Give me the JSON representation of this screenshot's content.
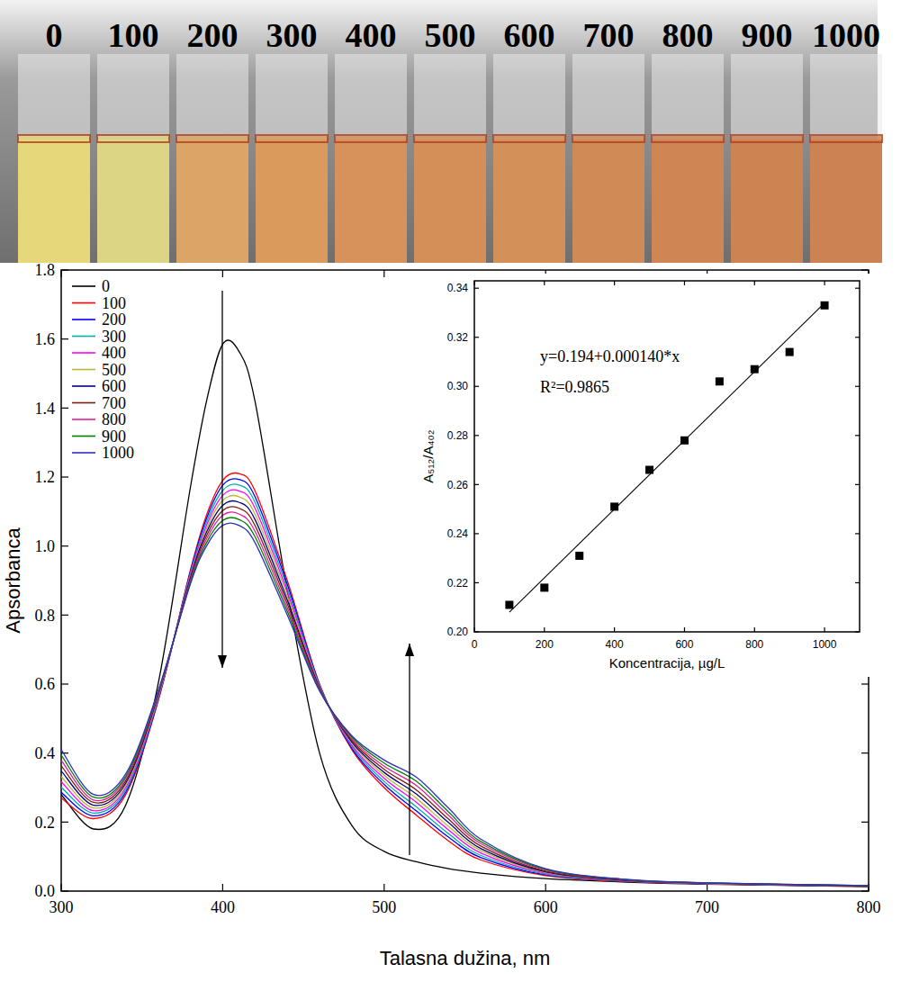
{
  "photo": {
    "labels": [
      "0",
      "100",
      "200",
      "300",
      "400",
      "500",
      "600",
      "700",
      "800",
      "900",
      "1000"
    ],
    "colors": [
      "#e6d77a",
      "#dcd584",
      "#dca566",
      "#d99a5c",
      "#d6925a",
      "#d48e58",
      "#d39058",
      "#d08a55",
      "#cf8654",
      "#cd8453",
      "#cc8252"
    ]
  },
  "chart_data": [
    {
      "type": "line",
      "x_label": "Talasna dužina, nm",
      "y_label": "Apsorbanca",
      "x": [
        300,
        320,
        340,
        360,
        380,
        390,
        400,
        410,
        420,
        440,
        460,
        480,
        500,
        520,
        540,
        560,
        600,
        650,
        700,
        800
      ],
      "xlim": [
        300,
        800
      ],
      "ylim": [
        0,
        1.8
      ],
      "xticks": [
        300,
        400,
        500,
        600,
        700,
        800
      ],
      "yticks": [
        {
          "value": 0,
          "label": "0.0"
        },
        0.2,
        0.4,
        0.6,
        0.8,
        {
          "value": 1,
          "label": "1.0"
        },
        1.2,
        1.4,
        1.6,
        1.8
      ],
      "legend": "top-left",
      "series": [
        {
          "name": "0",
          "color": "#000000",
          "values": [
            0.28,
            0.18,
            0.25,
            0.6,
            1.17,
            1.42,
            1.585,
            1.565,
            1.42,
            0.87,
            0.4,
            0.19,
            0.115,
            0.085,
            0.065,
            0.052,
            0.036,
            0.026,
            0.02,
            0.013
          ]
        },
        {
          "name": "100",
          "color": "#ff0000",
          "values": [
            0.27,
            0.21,
            0.28,
            0.55,
            0.93,
            1.09,
            1.19,
            1.21,
            1.16,
            0.9,
            0.6,
            0.41,
            0.3,
            0.22,
            0.145,
            0.09,
            0.045,
            0.028,
            0.021,
            0.014
          ]
        },
        {
          "name": "200",
          "color": "#0000ff",
          "values": [
            0.286,
            0.218,
            0.287,
            0.553,
            0.926,
            1.08,
            1.176,
            1.193,
            1.143,
            0.889,
            0.598,
            0.414,
            0.309,
            0.232,
            0.156,
            0.097,
            0.047,
            0.029,
            0.021,
            0.014
          ]
        },
        {
          "name": "300",
          "color": "#00b0b0",
          "values": [
            0.301,
            0.226,
            0.293,
            0.557,
            0.921,
            1.07,
            1.161,
            1.177,
            1.127,
            0.878,
            0.596,
            0.419,
            0.318,
            0.244,
            0.166,
            0.103,
            0.049,
            0.029,
            0.022,
            0.014
          ]
        },
        {
          "name": "400",
          "color": "#ff00ff",
          "values": [
            0.317,
            0.233,
            0.3,
            0.56,
            0.917,
            1.06,
            1.147,
            1.16,
            1.11,
            0.867,
            0.593,
            0.423,
            0.327,
            0.257,
            0.177,
            0.11,
            0.052,
            0.03,
            0.022,
            0.015
          ]
        },
        {
          "name": "500",
          "color": "#b8b838",
          "values": [
            0.332,
            0.241,
            0.307,
            0.563,
            0.912,
            1.05,
            1.132,
            1.143,
            1.093,
            0.856,
            0.591,
            0.428,
            0.336,
            0.269,
            0.187,
            0.117,
            0.054,
            0.031,
            0.022,
            0.015
          ]
        },
        {
          "name": "600",
          "color": "#000080",
          "values": [
            0.348,
            0.249,
            0.313,
            0.567,
            0.908,
            1.04,
            1.118,
            1.127,
            1.077,
            0.844,
            0.589,
            0.432,
            0.344,
            0.281,
            0.198,
            0.123,
            0.056,
            0.031,
            0.023,
            0.015
          ]
        },
        {
          "name": "700",
          "color": "#7a1f10",
          "values": [
            0.363,
            0.257,
            0.32,
            0.57,
            0.903,
            1.03,
            1.103,
            1.11,
            1.06,
            0.833,
            0.587,
            0.437,
            0.353,
            0.293,
            0.208,
            0.13,
            0.058,
            0.032,
            0.023,
            0.015
          ]
        },
        {
          "name": "800",
          "color": "#e0209a",
          "values": [
            0.379,
            0.264,
            0.327,
            0.573,
            0.899,
            1.02,
            1.089,
            1.093,
            1.043,
            0.822,
            0.584,
            0.441,
            0.362,
            0.306,
            0.219,
            0.137,
            0.061,
            0.033,
            0.023,
            0.016
          ]
        },
        {
          "name": "900",
          "color": "#008000",
          "values": [
            0.394,
            0.272,
            0.333,
            0.577,
            0.894,
            1.01,
            1.074,
            1.077,
            1.027,
            0.811,
            0.582,
            0.446,
            0.371,
            0.318,
            0.229,
            0.143,
            0.063,
            0.033,
            0.024,
            0.016
          ]
        },
        {
          "name": "1000",
          "color": "#3030c0",
          "values": [
            0.41,
            0.28,
            0.34,
            0.58,
            0.89,
            1.0,
            1.06,
            1.06,
            1.01,
            0.8,
            0.58,
            0.45,
            0.38,
            0.33,
            0.24,
            0.15,
            0.065,
            0.034,
            0.024,
            0.016
          ]
        }
      ]
    },
    {
      "type": "scatter",
      "x_label": "Koncentracija, µg/L",
      "y_label": "A₅₁₂/A₄₀₂",
      "annotations": [
        "y=0.194+0.000140*x",
        "R²=0.9865"
      ],
      "x": [
        100,
        200,
        300,
        400,
        500,
        600,
        700,
        800,
        900,
        1000
      ],
      "xlim": [
        0,
        1100
      ],
      "ylim": [
        0.2,
        0.343
      ],
      "xticks": [
        0,
        200,
        400,
        600,
        800,
        1000
      ],
      "yticks": [
        {
          "value": 0.2,
          "label": "0.20"
        },
        0.22,
        0.24,
        0.26,
        0.28,
        {
          "value": 0.3,
          "label": "0.30"
        },
        0.32,
        0.34
      ],
      "series": [
        {
          "color": "#000000",
          "marker": "square",
          "values": [
            0.211,
            0.218,
            0.231,
            0.251,
            0.266,
            0.278,
            0.302,
            0.307,
            0.314,
            0.333
          ]
        },
        {
          "type": "line",
          "color": "#000000",
          "x": [
            100,
            1000
          ],
          "values": [
            0.208,
            0.334
          ]
        }
      ]
    }
  ]
}
